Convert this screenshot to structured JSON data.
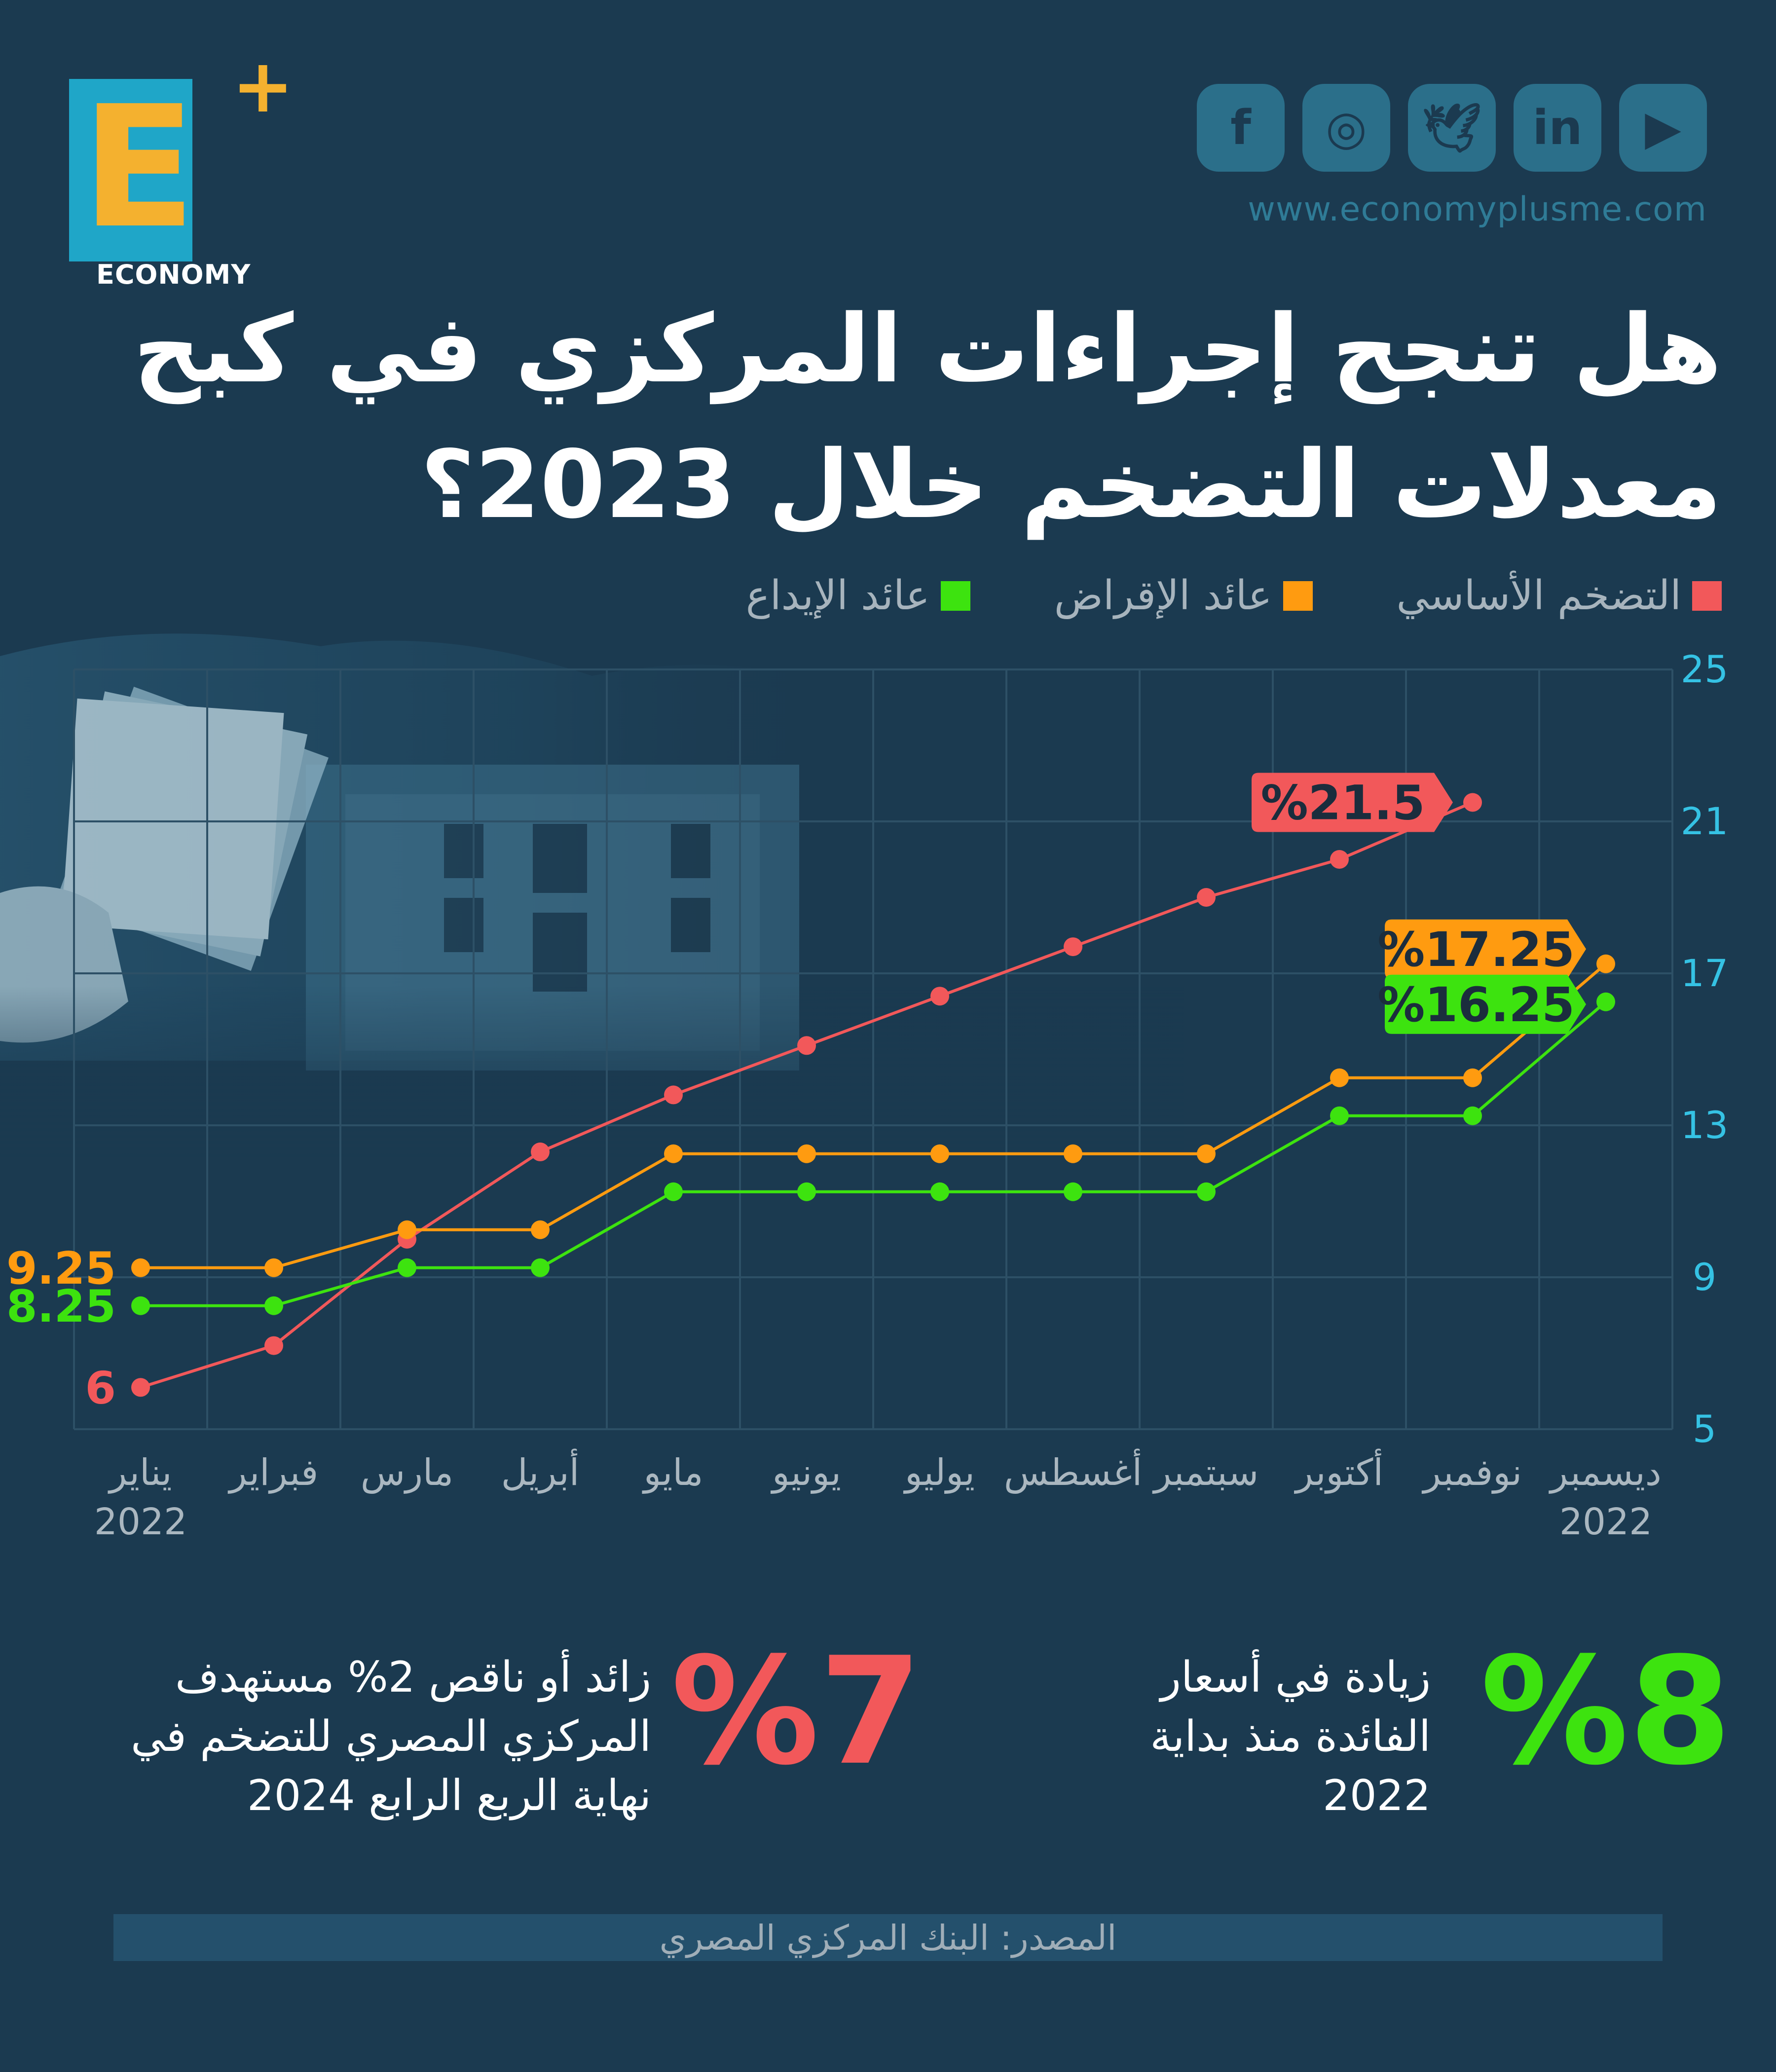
{
  "logo": {
    "wordmark": "ECONOMY",
    "letter": "E",
    "plus": "+"
  },
  "social": {
    "icons": [
      {
        "name": "facebook-icon",
        "glyph": "f"
      },
      {
        "name": "instagram-icon",
        "glyph": "◎"
      },
      {
        "name": "twitter-icon",
        "glyph": "🕊"
      },
      {
        "name": "linkedin-icon",
        "glyph": "in"
      },
      {
        "name": "youtube-icon",
        "glyph": "▶"
      }
    ],
    "url": "www.economyplusme.com"
  },
  "title": {
    "line1": "هل تنجح إجراءات المركزي في كبح",
    "line2": "معدلات التضخم خلال 2023؟"
  },
  "legend": [
    {
      "label": "التضخم الأساسي",
      "color": "#f2585a"
    },
    {
      "label": "عائد الإقراض",
      "color": "#ff9b10"
    },
    {
      "label": "عائد الإيداع",
      "color": "#3de30f"
    }
  ],
  "chart_data": {
    "type": "line",
    "categories": [
      "يناير",
      "فبراير",
      "مارس",
      "أبريل",
      "مايو",
      "يونيو",
      "يوليو",
      "أغسطس",
      "سبتمبر",
      "أكتوبر",
      "نوفمبر",
      "ديسمبر"
    ],
    "x_year_labels": {
      "first": "2022",
      "last": "2022"
    },
    "yticks": [
      5,
      9,
      13,
      17,
      21,
      25
    ],
    "ylim": [
      5,
      25
    ],
    "series": [
      {
        "name": "التضخم الأساسي",
        "color": "#f2585a",
        "values": [
          6.1,
          7.2,
          10.0,
          12.3,
          13.8,
          15.1,
          16.4,
          17.7,
          19.0,
          20.0,
          21.5,
          null
        ]
      },
      {
        "name": "عائد الإقراض",
        "color": "#ff9b10",
        "values": [
          9.25,
          9.25,
          10.25,
          10.25,
          12.25,
          12.25,
          12.25,
          12.25,
          12.25,
          14.25,
          14.25,
          17.25
        ]
      },
      {
        "name": "عائد الإيداع",
        "color": "#3de30f",
        "values": [
          8.25,
          8.25,
          9.25,
          9.25,
          11.25,
          11.25,
          11.25,
          11.25,
          11.25,
          13.25,
          13.25,
          16.25
        ]
      }
    ],
    "start_labels": [
      "6",
      "9.25",
      "8.25"
    ],
    "end_labels": [
      "%21.5",
      "%17.25",
      "%16.25"
    ]
  },
  "stats": {
    "stat1": {
      "value": "%8",
      "text": "زيادة في أسعار الفائدة منذ بداية 2022"
    },
    "stat2": {
      "value": "%7",
      "text": "زائد أو ناقص 2% مستهدف المركزي المصري للتضخم في نهاية الربع الرابع 2024"
    }
  },
  "source": "المصدر: البنك المركزي المصري"
}
